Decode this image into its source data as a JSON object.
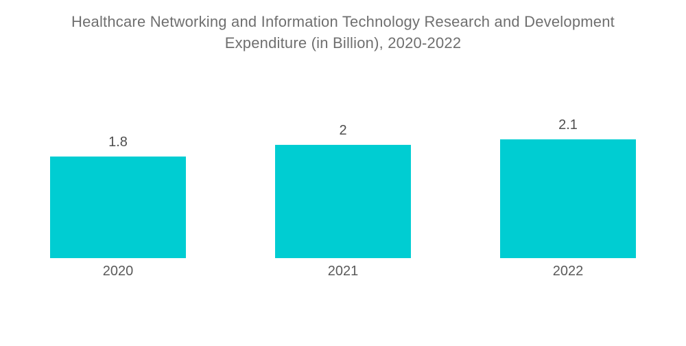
{
  "title_lines": [
    "Healthcare Networking and Information Technology Research and Development",
    "Expenditure (in Billion), 2020-2022"
  ],
  "chart_data": {
    "type": "bar",
    "title": "Healthcare Networking and Information Technology Research and Development Expenditure (in Billion), 2020-2022",
    "categories": [
      "2020",
      "2021",
      "2022"
    ],
    "values": [
      1.8,
      2,
      2.1
    ],
    "value_labels": [
      "1.8",
      "2",
      "2.1"
    ],
    "xlabel": "",
    "ylabel": "",
    "ylim": [
      0,
      2.1
    ],
    "grid": false,
    "legend": false,
    "layout": "vertical bars, value labels above bars, category labels below bars, no axes drawn"
  },
  "colors": {
    "bar": "#00CDD2",
    "title_text": "#6f6f6f",
    "value_text": "#4e4e4e",
    "category_text": "#5a5a5a",
    "background": "#FFFFFF"
  }
}
